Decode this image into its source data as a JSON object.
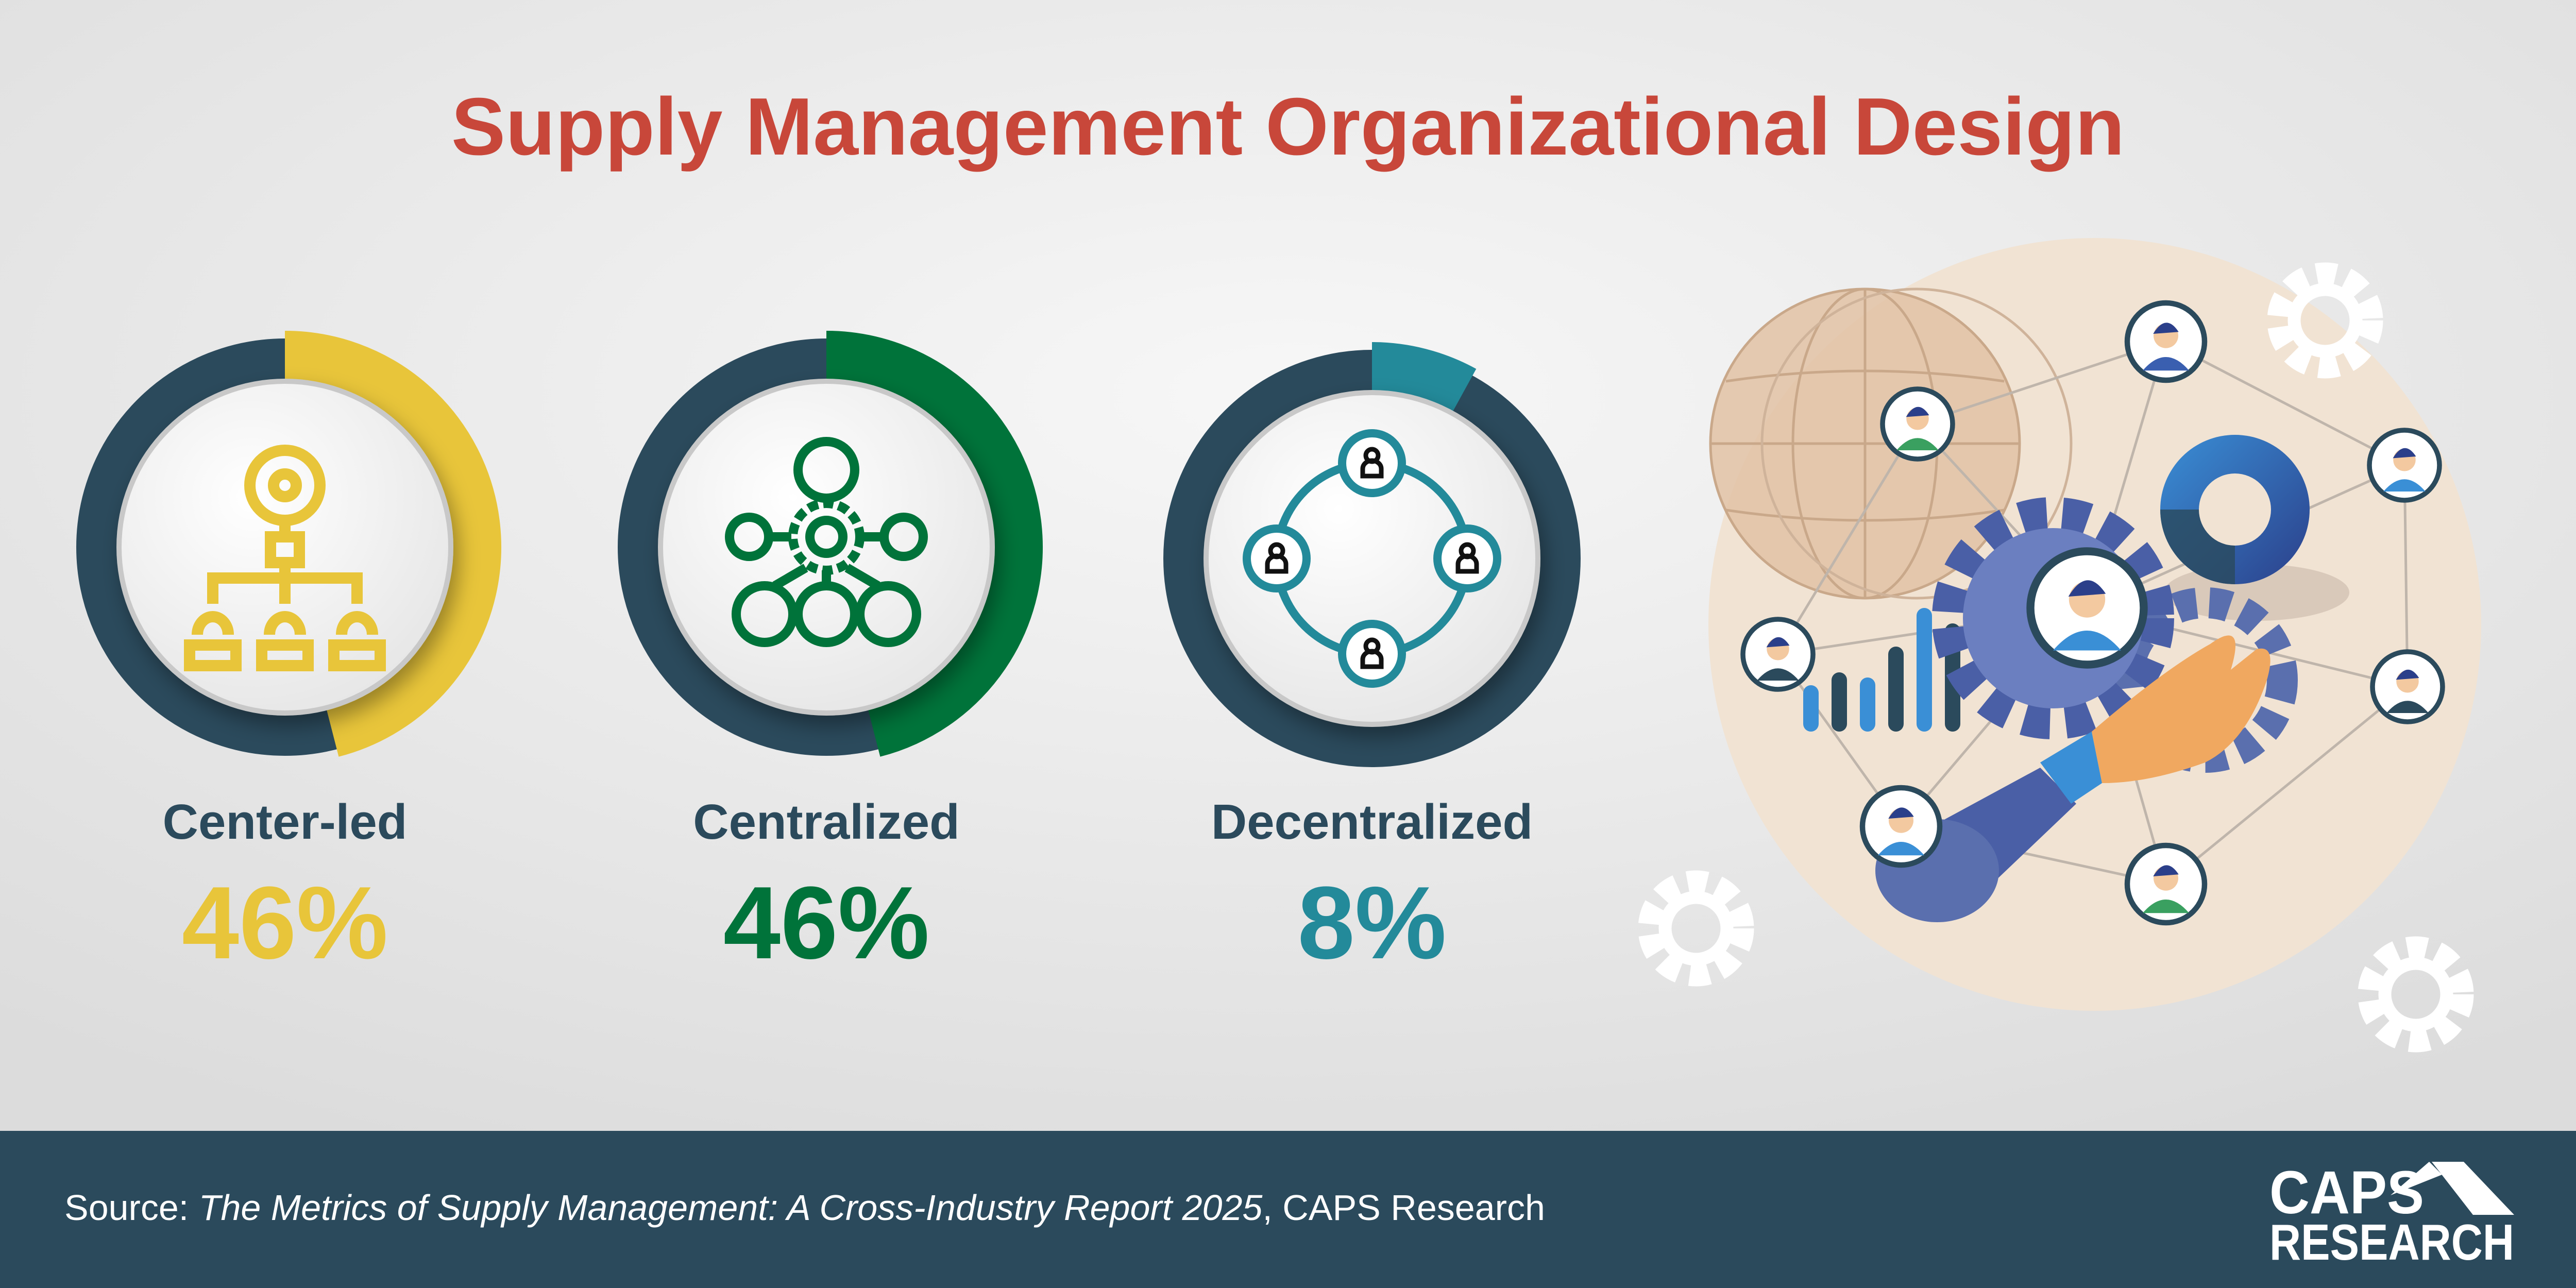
{
  "title": "Supply Management Organizational Design",
  "colors": {
    "title": "#c8473a",
    "ring": "#2b4a5c",
    "label": "#2b4a5c",
    "footer": "#2b4a5c",
    "beige": "#f1e3d3"
  },
  "chart_data": {
    "type": "donut",
    "title": "Supply Management Organizational Design",
    "unit": "%",
    "categories": [
      "Center-led",
      "Centralized",
      "Decentralized"
    ],
    "values": [
      46,
      46,
      8
    ],
    "series": [
      {
        "label": "Center-led",
        "value": 46,
        "display": "46%",
        "color": "#e8c53a",
        "icon": "org-chart-lightbulb-icon"
      },
      {
        "label": "Centralized",
        "value": 46,
        "display": "46%",
        "color": "#00733a",
        "icon": "central-gear-network-icon"
      },
      {
        "label": "Decentralized",
        "value": 8,
        "display": "8%",
        "color": "#238a9a",
        "icon": "people-ring-network-icon"
      }
    ]
  },
  "footer": {
    "source_prefix": "Source: ",
    "source_title": "The Metrics of Supply Management: A Cross-Industry Report 2025",
    "source_suffix": ", CAPS Research",
    "logo_line1": "CAPS",
    "logo_line2": "RESEARCH"
  }
}
